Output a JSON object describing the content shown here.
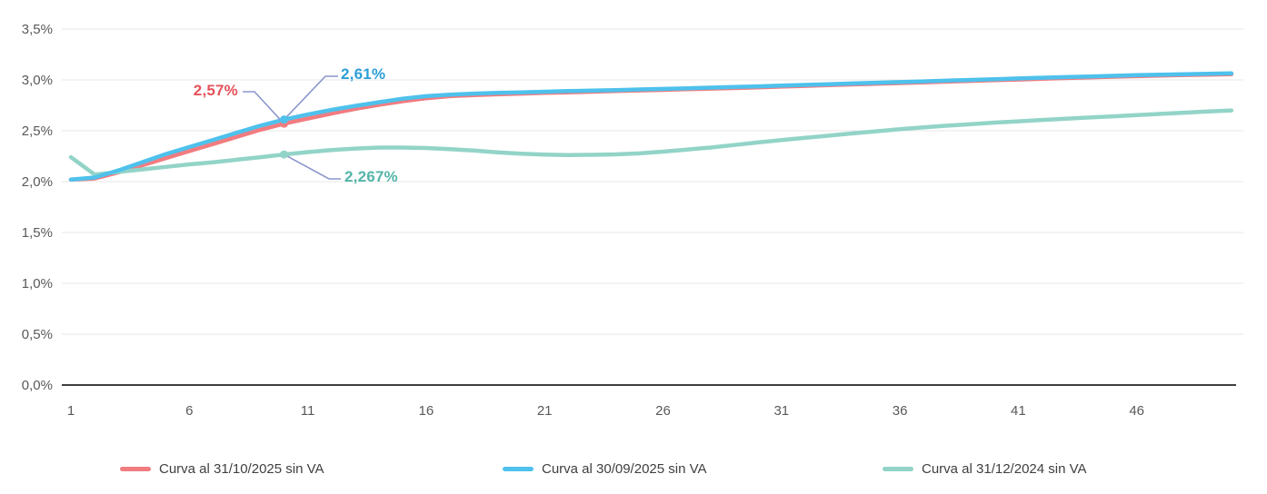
{
  "chart_data": {
    "type": "line",
    "title": "",
    "xlabel": "",
    "ylabel": "",
    "x_start": 1,
    "x_end": 50,
    "x_ticks": [
      1,
      6,
      11,
      16,
      21,
      26,
      31,
      36,
      41,
      46
    ],
    "y_axis": {
      "min": 0,
      "max": 3.5,
      "tick_step": 0.5,
      "tick_labels": [
        "0,0%",
        "0,5%",
        "1,0%",
        "1,5%",
        "2,0%",
        "2,5%",
        "3,0%",
        "3,5%"
      ]
    },
    "grid": "horizontal",
    "legend_position": "bottom",
    "series": [
      {
        "name": "Curva al 31/10/2025 sin VA",
        "color": "#F17C80",
        "values": [
          2.02,
          2.03,
          2.09,
          2.16,
          2.23,
          2.3,
          2.37,
          2.44,
          2.51,
          2.57,
          2.62,
          2.67,
          2.715,
          2.755,
          2.79,
          2.82,
          2.84,
          2.85,
          2.858,
          2.865,
          2.872,
          2.878,
          2.884,
          2.89,
          2.896,
          2.902,
          2.908,
          2.914,
          2.92,
          2.927,
          2.934,
          2.941,
          2.948,
          2.955,
          2.962,
          2.969,
          2.976,
          2.983,
          2.99,
          2.997,
          3.004,
          3.011,
          3.018,
          3.025,
          3.031,
          3.037,
          3.043,
          3.048,
          3.052,
          3.056
        ]
      },
      {
        "name": "Curva al 30/09/2025 sin VA",
        "color": "#4EC1EC",
        "values": [
          2.02,
          2.04,
          2.11,
          2.19,
          2.27,
          2.34,
          2.41,
          2.48,
          2.55,
          2.61,
          2.66,
          2.705,
          2.745,
          2.78,
          2.815,
          2.84,
          2.855,
          2.865,
          2.872,
          2.878,
          2.884,
          2.89,
          2.895,
          2.9,
          2.906,
          2.912,
          2.918,
          2.924,
          2.93,
          2.937,
          2.944,
          2.951,
          2.958,
          2.965,
          2.972,
          2.979,
          2.986,
          2.993,
          3.0,
          3.007,
          3.014,
          3.021,
          3.028,
          3.034,
          3.04,
          3.046,
          3.051,
          3.056,
          3.06,
          3.064
        ]
      },
      {
        "name": "Curva al 31/12/2024 sin VA",
        "color": "#92D4C7",
        "values": [
          2.24,
          2.07,
          2.095,
          2.12,
          2.145,
          2.17,
          2.19,
          2.215,
          2.24,
          2.267,
          2.29,
          2.31,
          2.325,
          2.335,
          2.335,
          2.33,
          2.32,
          2.305,
          2.288,
          2.275,
          2.266,
          2.262,
          2.263,
          2.268,
          2.278,
          2.295,
          2.315,
          2.335,
          2.36,
          2.385,
          2.408,
          2.43,
          2.452,
          2.474,
          2.495,
          2.515,
          2.533,
          2.55,
          2.565,
          2.58,
          2.593,
          2.606,
          2.618,
          2.63,
          2.642,
          2.654,
          2.666,
          2.678,
          2.69,
          2.7
        ]
      }
    ],
    "annotations": [
      {
        "series": 0,
        "x": 10,
        "value": 2.57,
        "label": "2,57%",
        "label_color": "#E4525A"
      },
      {
        "series": 1,
        "x": 10,
        "value": 2.61,
        "label": "2,61%",
        "label_color": "#2D9FD8"
      },
      {
        "series": 2,
        "x": 10,
        "value": 2.267,
        "label": "2,267%",
        "label_color": "#53B5A9"
      }
    ]
  },
  "legend": {
    "items": [
      {
        "label": "Curva al 31/10/2025 sin VA",
        "color": "#F17C80"
      },
      {
        "label": "Curva al 30/09/2025 sin VA",
        "color": "#4EC1EC"
      },
      {
        "label": "Curva al 31/12/2024 sin VA",
        "color": "#92D4C7"
      }
    ]
  },
  "colors": {
    "callout_line": "#8C95CD",
    "gridline": "#E7E7E7",
    "axis_line": "#3F3F3F",
    "tick_text": "#595959",
    "legend_text": "#404040",
    "background": "#FFFFFF"
  }
}
